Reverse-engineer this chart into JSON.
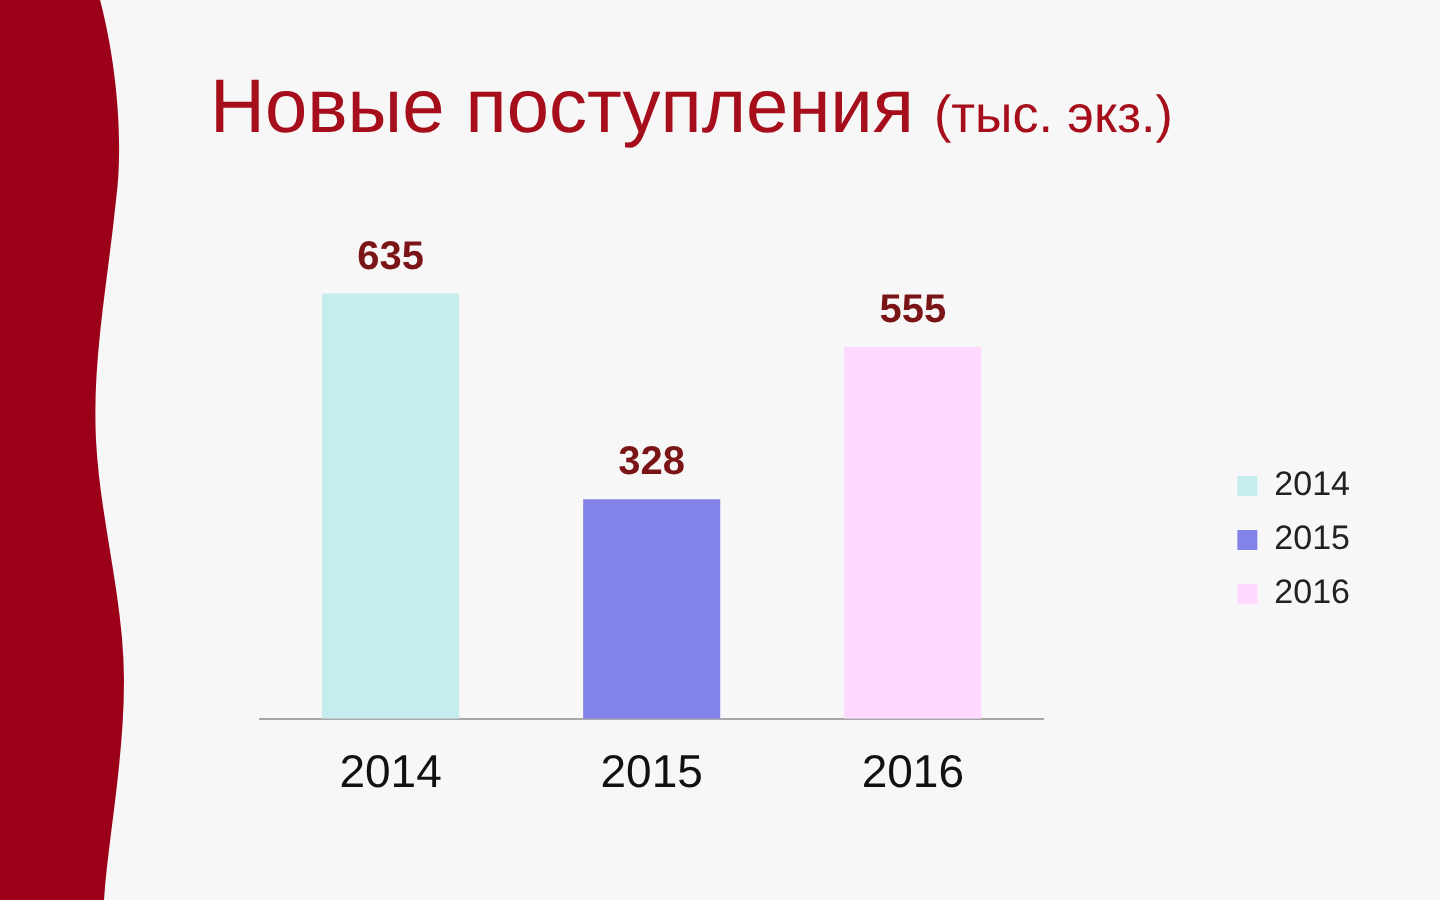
{
  "chart_data": {
    "type": "bar",
    "title": "Новые поступления",
    "subtitle": "(тыс. экз.)",
    "categories": [
      "2014",
      "2015",
      "2016"
    ],
    "series": [
      {
        "name": "2014",
        "color": "#c6eded",
        "values": [
          635,
          null,
          null
        ]
      },
      {
        "name": "2015",
        "color": "#8282e8",
        "values": [
          null,
          328,
          null
        ]
      },
      {
        "name": "2016",
        "color": "#ffd9ff",
        "values": [
          null,
          null,
          555
        ]
      }
    ],
    "data_labels": true,
    "legend": "right",
    "tick_labels": "x"
  }
}
